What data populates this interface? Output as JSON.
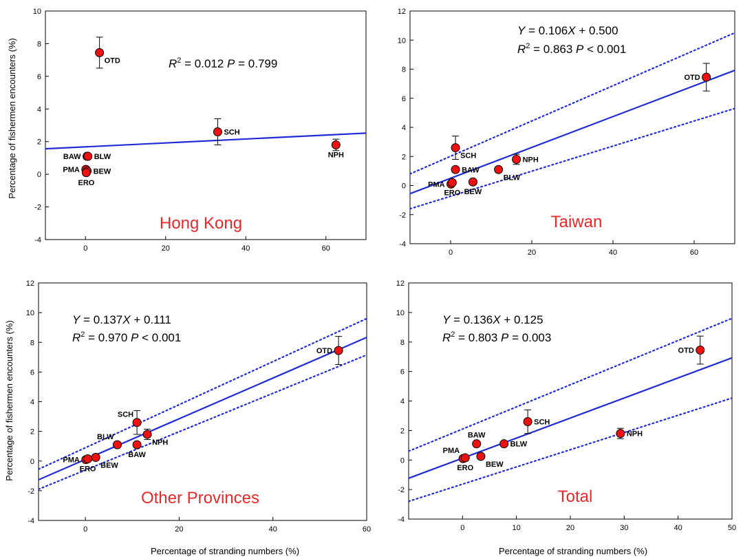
{
  "figure": {
    "ylabel": "Percentage of fishermen encounters (%)",
    "xlabel": "Percentage of stranding numbers (%)"
  },
  "colors": {
    "marker_fill": "#ee1111",
    "fit_line": "#1f2bd6",
    "panel_title": "#e8282a",
    "text": "#000000"
  },
  "chart_data": [
    {
      "type": "scatter",
      "title": "Hong Kong",
      "equation": "",
      "stats": {
        "r2": "0.012",
        "p_op": "=",
        "p": "0.799"
      },
      "xlim": [
        -10,
        70
      ],
      "ylim": [
        -4,
        10
      ],
      "xticks": [
        0,
        20,
        40,
        60
      ],
      "yticks": [
        -4,
        -2,
        0,
        2,
        4,
        6,
        8,
        10
      ],
      "show_ylabel": true,
      "show_xlabel": false,
      "fit": {
        "slope": 0.012,
        "intercept": 1.68
      },
      "ci": null,
      "points": [
        {
          "label": "OTD",
          "x": 3.5,
          "y": 7.45,
          "err": 0.95,
          "label_pos": "below-right"
        },
        {
          "label": "SCH",
          "x": 33,
          "y": 2.6,
          "err": 0.8,
          "label_pos": "right"
        },
        {
          "label": "NPH",
          "x": 62.5,
          "y": 1.8,
          "err": 0.35,
          "label_pos": "below"
        },
        {
          "label": "BAW",
          "x": 0.4,
          "y": 1.1,
          "err": 0,
          "label_pos": "left"
        },
        {
          "label": "BLW",
          "x": 0.6,
          "y": 1.1,
          "err": 0,
          "label_pos": "right"
        },
        {
          "label": "PMA",
          "x": 0.1,
          "y": 0.3,
          "err": 0,
          "label_pos": "left"
        },
        {
          "label": "BEW",
          "x": 0.4,
          "y": 0.2,
          "err": 0,
          "label_pos": "right"
        },
        {
          "label": "ERO",
          "x": 0.2,
          "y": 0.1,
          "err": 0,
          "label_pos": "below"
        }
      ]
    },
    {
      "type": "scatter",
      "title": "Taiwan",
      "equation": "0.106X + 0.500",
      "stats": {
        "r2": "0.863",
        "p_op": "<",
        "p": "0.001"
      },
      "xlim": [
        -10,
        70
      ],
      "ylim": [
        -4,
        12
      ],
      "xticks": [
        0,
        20,
        40,
        60
      ],
      "yticks": [
        -4,
        -2,
        0,
        2,
        4,
        6,
        8,
        10,
        12
      ],
      "show_ylabel": false,
      "show_xlabel": false,
      "fit": {
        "slope": 0.106,
        "intercept": 0.5
      },
      "ci": {
        "upper": [
          [
            -10,
            0.8
          ],
          [
            70,
            10.5
          ]
        ],
        "lower": [
          [
            -10,
            -1.6
          ],
          [
            70,
            5.3
          ]
        ]
      },
      "points": [
        {
          "label": "OTD",
          "x": 63,
          "y": 7.45,
          "err": 0.95,
          "label_pos": "left"
        },
        {
          "label": "SCH",
          "x": 1.2,
          "y": 2.6,
          "err": 0.8,
          "label_pos": "below-right"
        },
        {
          "label": "NPH",
          "x": 16.2,
          "y": 1.8,
          "err": 0.35,
          "label_pos": "right"
        },
        {
          "label": "BAW",
          "x": 1.2,
          "y": 1.1,
          "err": 0,
          "label_pos": "right"
        },
        {
          "label": "BLW",
          "x": 11.8,
          "y": 1.1,
          "err": 0,
          "label_pos": "below-right"
        },
        {
          "label": "PMA",
          "x": 0.1,
          "y": 0.1,
          "err": 0,
          "label_pos": "left"
        },
        {
          "label": "ERO",
          "x": 0.4,
          "y": 0.2,
          "err": 0,
          "label_pos": "below"
        },
        {
          "label": "BEW",
          "x": 5.5,
          "y": 0.25,
          "err": 0,
          "label_pos": "below"
        }
      ]
    },
    {
      "type": "scatter",
      "title": "Other Provinces",
      "equation": "0.137X + 0.111",
      "stats": {
        "r2": "0.970",
        "p_op": "<",
        "p": "0.001"
      },
      "xlim": [
        -10,
        60
      ],
      "ylim": [
        -4,
        12
      ],
      "xticks": [
        0,
        20,
        40,
        60
      ],
      "yticks": [
        -4,
        -2,
        0,
        2,
        4,
        6,
        8,
        10,
        12
      ],
      "show_ylabel": true,
      "show_xlabel": true,
      "fit": {
        "slope": 0.137,
        "intercept": 0.111
      },
      "ci": {
        "upper": [
          [
            -10,
            -0.55
          ],
          [
            60,
            9.6
          ]
        ],
        "lower": [
          [
            -10,
            -1.9
          ],
          [
            60,
            7.15
          ]
        ]
      },
      "points": [
        {
          "label": "OTD",
          "x": 54,
          "y": 7.45,
          "err": 0.95,
          "label_pos": "left"
        },
        {
          "label": "SCH",
          "x": 11,
          "y": 2.6,
          "err": 0.8,
          "label_pos": "above-left"
        },
        {
          "label": "NPH",
          "x": 13.2,
          "y": 1.8,
          "err": 0.35,
          "label_pos": "below-right"
        },
        {
          "label": "BLW",
          "x": 6.8,
          "y": 1.1,
          "err": 0,
          "label_pos": "above-left"
        },
        {
          "label": "BAW",
          "x": 11,
          "y": 1.1,
          "err": 0,
          "label_pos": "below"
        },
        {
          "label": "PMA",
          "x": 0.1,
          "y": 0.1,
          "err": 0,
          "label_pos": "left"
        },
        {
          "label": "ERO",
          "x": 0.5,
          "y": 0.15,
          "err": 0,
          "label_pos": "below"
        },
        {
          "label": "BEW",
          "x": 2.2,
          "y": 0.25,
          "err": 0,
          "label_pos": "below-right"
        }
      ]
    },
    {
      "type": "scatter",
      "title": "Total",
      "equation": "0.136X + 0.125",
      "stats": {
        "r2": "0.803",
        "p_op": "=",
        "p": "0.003"
      },
      "xlim": [
        -10,
        50
      ],
      "ylim": [
        -4,
        12
      ],
      "xticks": [
        0,
        10,
        20,
        30,
        40,
        50
      ],
      "yticks": [
        -4,
        -2,
        0,
        2,
        4,
        6,
        8,
        10,
        12
      ],
      "show_ylabel": false,
      "show_xlabel": true,
      "fit": {
        "slope": 0.136,
        "intercept": 0.125
      },
      "ci": {
        "upper": [
          [
            -10,
            0.6
          ],
          [
            50,
            9.6
          ]
        ],
        "lower": [
          [
            -10,
            -2.8
          ],
          [
            50,
            4.2
          ]
        ]
      },
      "points": [
        {
          "label": "OTD",
          "x": 44.1,
          "y": 7.45,
          "err": 0.95,
          "label_pos": "left"
        },
        {
          "label": "SCH",
          "x": 12.1,
          "y": 2.6,
          "err": 0.8,
          "label_pos": "right"
        },
        {
          "label": "NPH",
          "x": 29.3,
          "y": 1.8,
          "err": 0.35,
          "label_pos": "right"
        },
        {
          "label": "BAW",
          "x": 2.6,
          "y": 1.1,
          "err": 0,
          "label_pos": "above"
        },
        {
          "label": "BLW",
          "x": 7.7,
          "y": 1.1,
          "err": 0,
          "label_pos": "right"
        },
        {
          "label": "PMA",
          "x": 0.1,
          "y": 0.1,
          "err": 0,
          "label_pos": "above-left"
        },
        {
          "label": "ERO",
          "x": 0.5,
          "y": 0.15,
          "err": 0,
          "label_pos": "below"
        },
        {
          "label": "BEW",
          "x": 3.4,
          "y": 0.25,
          "err": 0,
          "label_pos": "below-right"
        }
      ]
    }
  ]
}
